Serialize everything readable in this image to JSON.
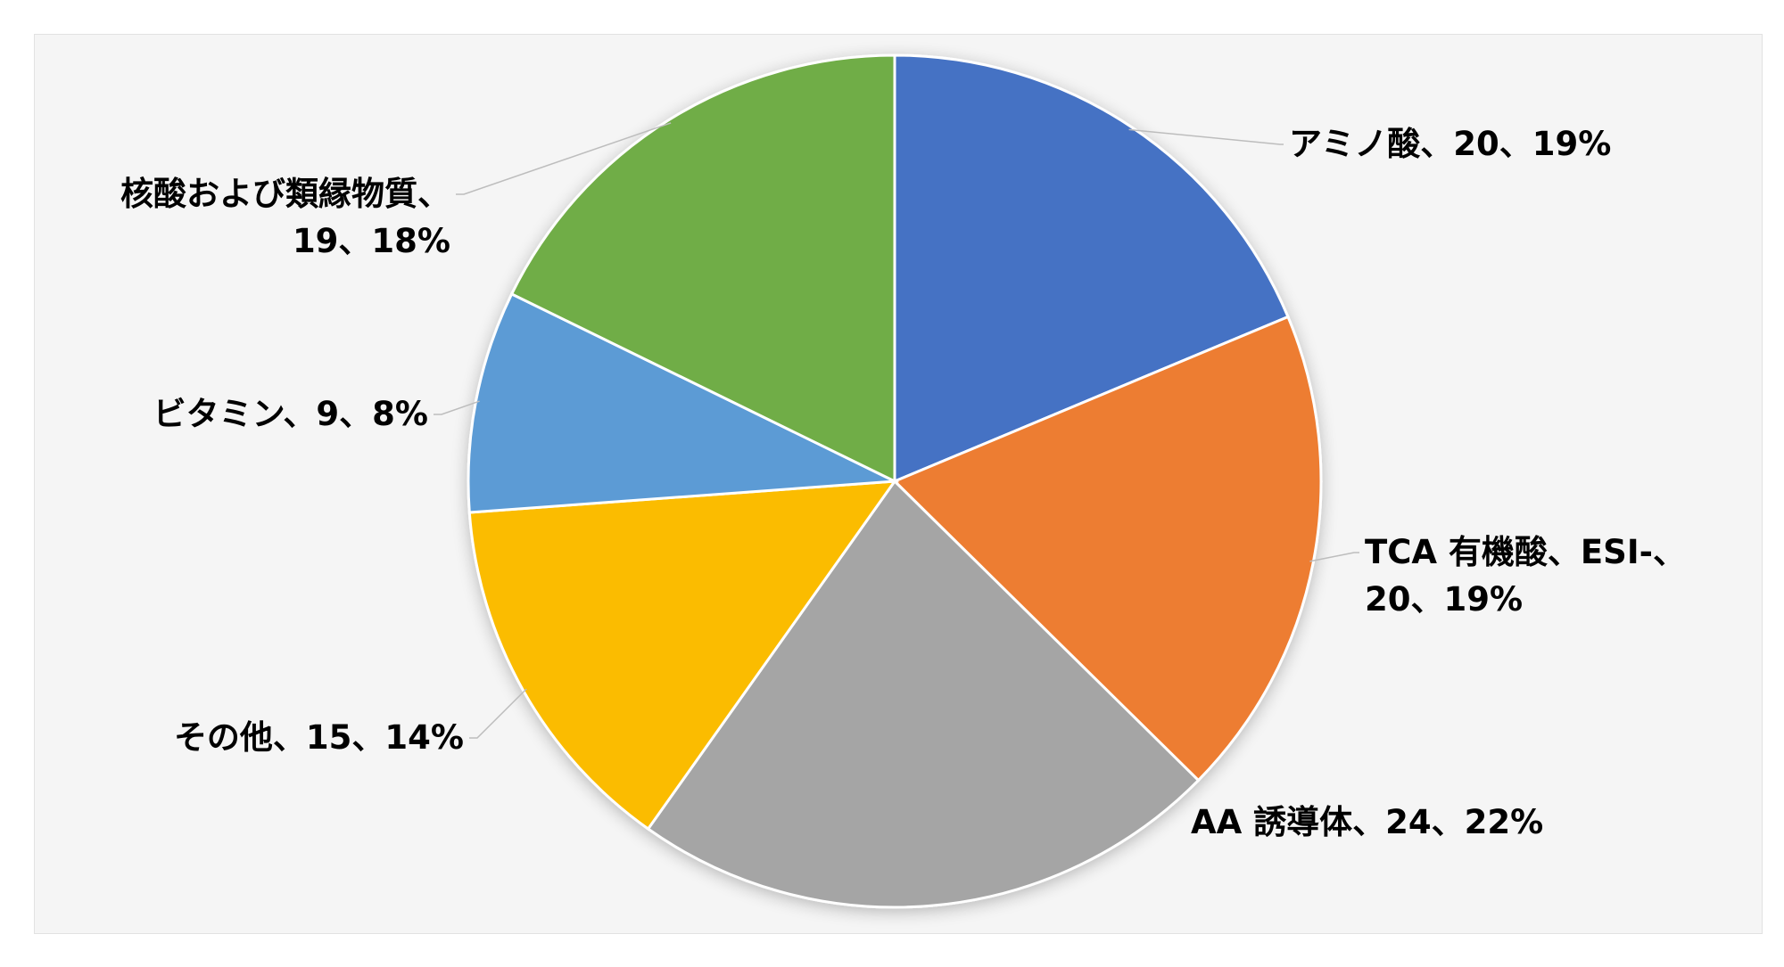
{
  "chart_data": {
    "type": "pie",
    "slices": [
      {
        "label": "アミノ酸、20、19%",
        "value": 20,
        "percent": 19,
        "color": "#4472c4"
      },
      {
        "label": "TCA 有機酸、ESI-、20、19%",
        "label_lines": [
          "TCA 有機酸、ESI-、",
          "20、19%"
        ],
        "value": 20,
        "percent": 19,
        "color": "#ed7d31"
      },
      {
        "label": "AA 誘導体、24、22%",
        "value": 24,
        "percent": 22,
        "color": "#a5a5a5"
      },
      {
        "label": "その他、15、14%",
        "value": 15,
        "percent": 14,
        "color": "#fbbc05"
      },
      {
        "label": "ビタミン、9、8%",
        "value": 9,
        "percent": 8,
        "color": "#5b9bd5"
      },
      {
        "label": "核酸および類縁物質、19、18%",
        "label_lines": [
          "核酸および類縁物質、",
          "19、18%"
        ],
        "value": 19,
        "percent": 18,
        "color": "#70ad47"
      }
    ]
  }
}
